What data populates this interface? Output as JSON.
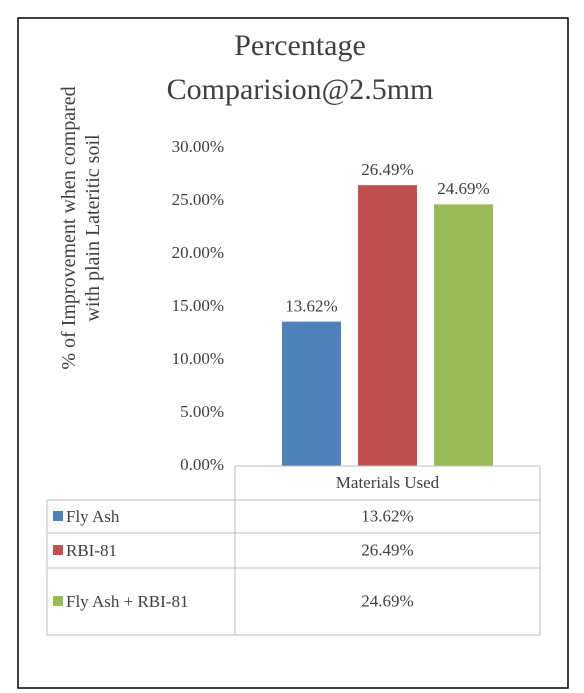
{
  "chart_data": {
    "type": "bar",
    "title": "Percentage Comparision@2.5mm",
    "ylabel": "% of Improvement  when compared with plain Lateritic soil",
    "categories": [
      "Materials Used"
    ],
    "series": [
      {
        "name": "Fly Ash",
        "color": "#4f81bd",
        "values": [
          13.62
        ],
        "value_labels": [
          "13.62%"
        ]
      },
      {
        "name": "RBI-81",
        "color": "#c0504d",
        "values": [
          26.49
        ],
        "value_labels": [
          "26.49%"
        ]
      },
      {
        "name": "Fly Ash + RBI-81",
        "color": "#9bbb59",
        "values": [
          24.69
        ],
        "value_labels": [
          "24.69%"
        ]
      }
    ],
    "ylim": [
      0,
      30
    ],
    "yticks": [
      {
        "value": 0,
        "label": "0.00%"
      },
      {
        "value": 5,
        "label": "5.00%"
      },
      {
        "value": 10,
        "label": "10.00%"
      },
      {
        "value": 15,
        "label": "15.00%"
      },
      {
        "value": 20,
        "label": "20.00%"
      },
      {
        "value": 25,
        "label": "25.00%"
      },
      {
        "value": 30,
        "label": "30.00%"
      }
    ],
    "grid": false
  }
}
